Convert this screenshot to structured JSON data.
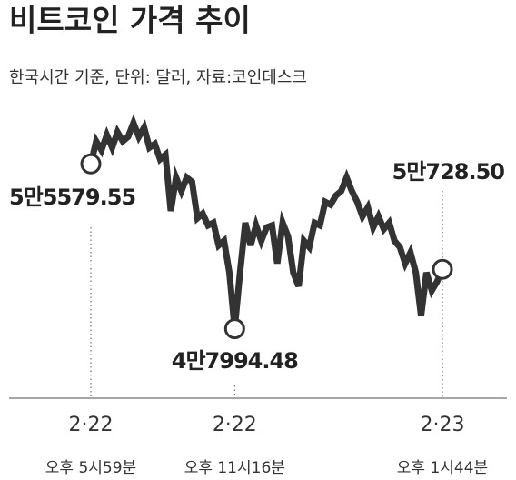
{
  "chart_data": {
    "type": "line",
    "title": "비트코인 가격 추이",
    "subtitle": "한국시간 기준, 단위: 달러, 자료:코인데스크",
    "categories": [
      "2·22",
      null,
      null,
      null,
      null,
      null,
      null,
      null,
      null,
      null,
      null,
      null,
      null,
      null,
      null,
      null,
      null,
      null,
      null,
      null,
      null,
      null,
      null,
      null,
      null,
      null,
      null,
      "2·22",
      null,
      null,
      null,
      null,
      null,
      null,
      null,
      null,
      null,
      null,
      null,
      null,
      null,
      null,
      null,
      null,
      null,
      null,
      null,
      null,
      null,
      null,
      null,
      null,
      null,
      null,
      null,
      null,
      null,
      null,
      null,
      null,
      null,
      null,
      null,
      null,
      null,
      null,
      "2·23"
    ],
    "times": [
      "오후 5시59분",
      null,
      null,
      null,
      null,
      null,
      null,
      null,
      null,
      null,
      null,
      null,
      null,
      null,
      null,
      null,
      null,
      null,
      null,
      null,
      null,
      null,
      null,
      null,
      null,
      null,
      null,
      "오후 11시16분",
      null,
      null,
      null,
      null,
      null,
      null,
      null,
      null,
      null,
      null,
      null,
      null,
      null,
      null,
      null,
      null,
      null,
      null,
      null,
      null,
      null,
      null,
      null,
      null,
      null,
      null,
      null,
      null,
      null,
      null,
      null,
      null,
      null,
      null,
      null,
      null,
      null,
      null,
      "오후 1시44분"
    ],
    "values": [
      55579.55,
      56620,
      56210,
      56910,
      56330,
      57040,
      56620,
      56830,
      57460,
      56830,
      57250,
      56330,
      56500,
      55790,
      56000,
      53410,
      54950,
      54330,
      54950,
      54750,
      53080,
      53290,
      52750,
      52870,
      51830,
      52040,
      50580,
      47994.48,
      50580,
      52870,
      51830,
      52750,
      52040,
      52660,
      52750,
      51000,
      52870,
      52250,
      50580,
      49950,
      52040,
      51750,
      52870,
      52750,
      53830,
      53700,
      54120,
      54330,
      54950,
      54330,
      53830,
      53160,
      53580,
      52660,
      53160,
      52580,
      52870,
      52040,
      51750,
      51000,
      51500,
      50580,
      48580,
      50580,
      49750,
      50160,
      50728.5
    ],
    "value_labels": [
      "5만5579.55",
      null,
      null,
      null,
      null,
      null,
      null,
      null,
      null,
      null,
      null,
      null,
      null,
      null,
      null,
      null,
      null,
      null,
      null,
      null,
      null,
      null,
      null,
      null,
      null,
      null,
      null,
      "4만7994.48",
      null,
      null,
      null,
      null,
      null,
      null,
      null,
      null,
      null,
      null,
      null,
      null,
      null,
      null,
      null,
      null,
      null,
      null,
      null,
      null,
      null,
      null,
      null,
      null,
      null,
      null,
      null,
      null,
      null,
      null,
      null,
      null,
      null,
      null,
      null,
      null,
      null,
      null,
      "5만728.50"
    ],
    "color": "#333333",
    "ylim": [
      44800,
      58100
    ]
  }
}
